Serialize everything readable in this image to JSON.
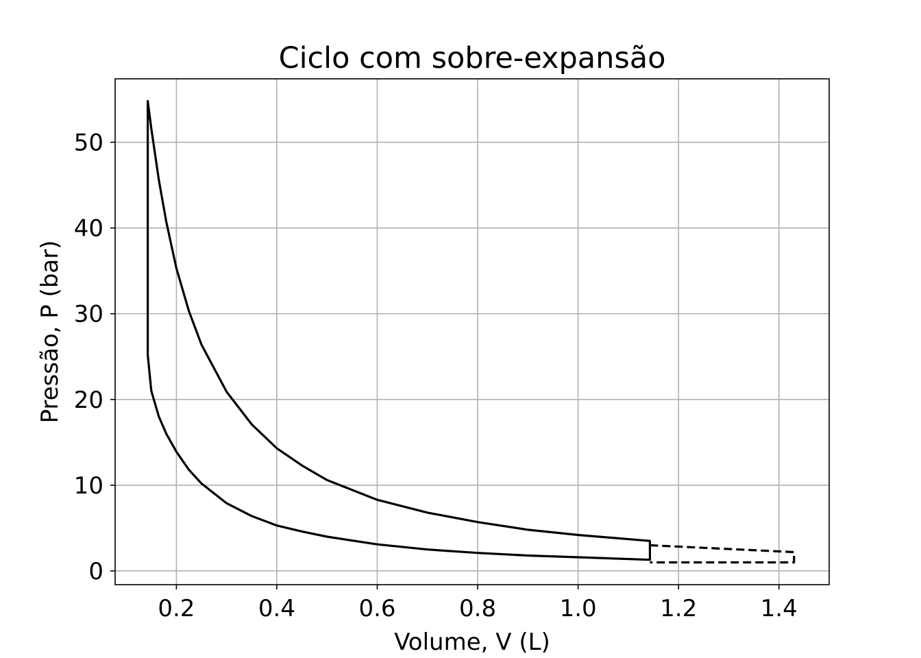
{
  "chart_data": {
    "type": "line",
    "title": "Ciclo com sobre-expansão",
    "xlabel": "Volume, V (L)",
    "ylabel": "Pressão, P (bar)",
    "xlim": [
      0.078,
      1.5
    ],
    "ylim": [
      -1.6,
      57.4
    ],
    "xticks": [
      0.2,
      0.4,
      0.6,
      0.8,
      1.0,
      1.2,
      1.4
    ],
    "xtick_labels": [
      "0.2",
      "0.4",
      "0.6",
      "0.8",
      "1.0",
      "1.2",
      "1.4"
    ],
    "yticks": [
      0,
      10,
      20,
      30,
      40,
      50
    ],
    "ytick_labels": [
      "0",
      "10",
      "20",
      "30",
      "40",
      "50"
    ],
    "grid": true,
    "color": "#000000",
    "series": [
      {
        "style": "solid",
        "points": [
          [
            0.143,
            25.2
          ],
          [
            0.143,
            54.8
          ],
          [
            0.15,
            51.6
          ],
          [
            0.165,
            45.6
          ],
          [
            0.18,
            40.7
          ],
          [
            0.2,
            35.3
          ],
          [
            0.225,
            30.3
          ],
          [
            0.25,
            26.4
          ],
          [
            0.3,
            20.9
          ],
          [
            0.35,
            17.1
          ],
          [
            0.4,
            14.3
          ],
          [
            0.45,
            12.3
          ],
          [
            0.5,
            10.6
          ],
          [
            0.6,
            8.3
          ],
          [
            0.7,
            6.8
          ],
          [
            0.8,
            5.7
          ],
          [
            0.9,
            4.8
          ],
          [
            1.0,
            4.2
          ],
          [
            1.143,
            3.5
          ],
          [
            1.143,
            1.3
          ],
          [
            1.0,
            1.6
          ],
          [
            0.9,
            1.8
          ],
          [
            0.8,
            2.1
          ],
          [
            0.7,
            2.5
          ],
          [
            0.6,
            3.1
          ],
          [
            0.5,
            4.0
          ],
          [
            0.45,
            4.6
          ],
          [
            0.4,
            5.3
          ],
          [
            0.35,
            6.4
          ],
          [
            0.3,
            7.9
          ],
          [
            0.25,
            10.2
          ],
          [
            0.225,
            11.8
          ],
          [
            0.2,
            13.9
          ],
          [
            0.18,
            16.0
          ],
          [
            0.165,
            18.0
          ],
          [
            0.15,
            21.0
          ],
          [
            0.143,
            25.2
          ]
        ]
      },
      {
        "style": "dashed",
        "points": [
          [
            1.143,
            3.0
          ],
          [
            1.43,
            2.2
          ],
          [
            1.43,
            1.0
          ],
          [
            1.143,
            1.0
          ]
        ]
      }
    ]
  }
}
